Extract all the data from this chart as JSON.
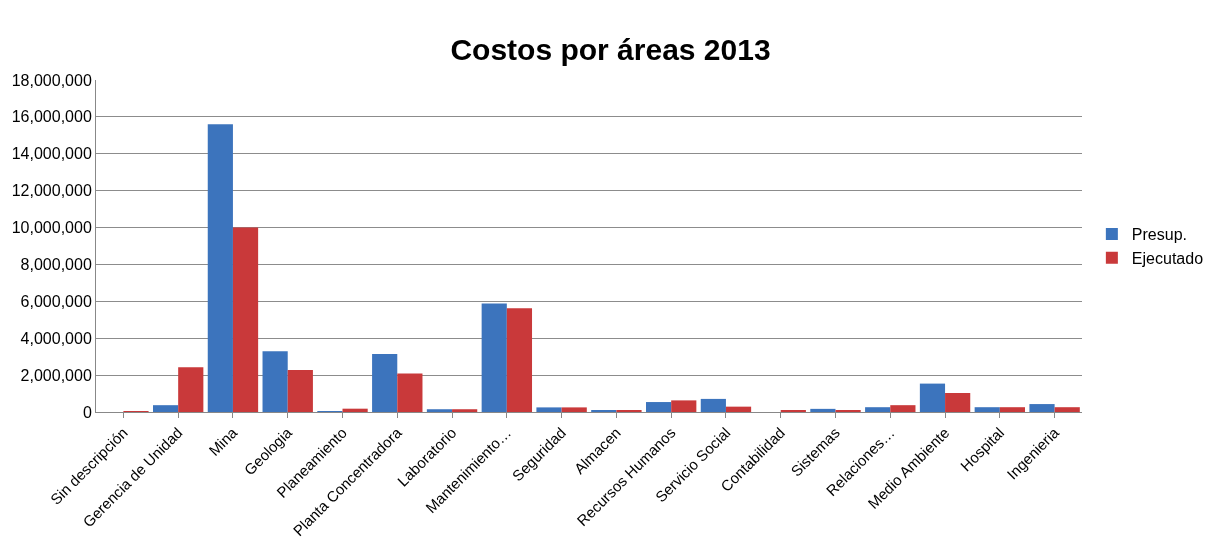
{
  "chart_data": {
    "type": "bar",
    "title": "Costos por áreas 2013",
    "categories": [
      "Sin descripción",
      "Gerencia de Unidad",
      "Mina",
      "Geologia",
      "Planeamiento",
      "Planta Concentradora",
      "Laboratorio",
      "Mantenimiento…",
      "Seguridad",
      "Almacen",
      "Recursos Humanos",
      "Servicio Social",
      "Contabilidad",
      "Sistemas",
      "Relaciones…",
      "Medio Ambiente",
      "Hospital",
      "Ingenieria"
    ],
    "series": [
      {
        "name": "Presup.",
        "color": "#3c74bd",
        "values": [
          0,
          370000,
          15600000,
          3300000,
          50000,
          3140000,
          150000,
          5880000,
          250000,
          100000,
          540000,
          710000,
          0,
          170000,
          260000,
          1540000,
          260000,
          430000
        ]
      },
      {
        "name": "Ejecutado",
        "color": "#c9393a",
        "values": [
          30000,
          2430000,
          10000000,
          2280000,
          180000,
          2090000,
          150000,
          5630000,
          250000,
          80000,
          630000,
          290000,
          100000,
          80000,
          370000,
          1030000,
          260000,
          260000
        ]
      }
    ],
    "ylim": [
      0,
      18000000
    ],
    "yticks": [
      {
        "value": 0,
        "label": "0"
      },
      {
        "value": 2000000,
        "label": "2,000,000"
      },
      {
        "value": 4000000,
        "label": "4,000,000"
      },
      {
        "value": 6000000,
        "label": "6,000,000"
      },
      {
        "value": 8000000,
        "label": "8,000,000"
      },
      {
        "value": 10000000,
        "label": "10,000,000"
      },
      {
        "value": 12000000,
        "label": "12,000,000"
      },
      {
        "value": 14000000,
        "label": "14,000,000"
      },
      {
        "value": 16000000,
        "label": "16,000,000"
      },
      {
        "value": 18000000,
        "label": "18,000,000"
      }
    ],
    "grid": "y",
    "legend": "right"
  }
}
